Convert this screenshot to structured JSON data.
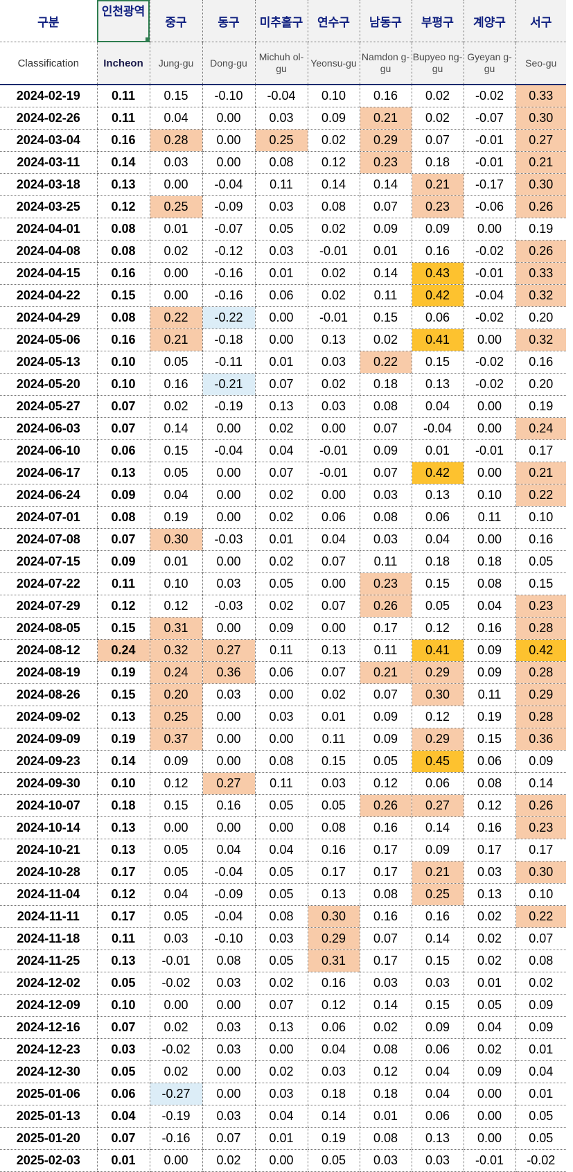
{
  "header": {
    "columns_ko": [
      "구분",
      "인천광역",
      "중구",
      "동구",
      "미추홀구",
      "연수구",
      "남동구",
      "부평구",
      "계양구",
      "서구"
    ],
    "columns_en": [
      "Classification",
      "Incheon",
      "Jung-gu",
      "Dong-gu",
      "Michuh ol-gu",
      "Yeonsu-gu",
      "Namdon g-gu",
      "Bupyeo ng-gu",
      "Gyeyan g-gu",
      "Seo-gu"
    ]
  },
  "colors": {
    "orange": "#f8cba9",
    "yellow": "#fdc22f",
    "blue": "#dcedf7",
    "header_navy": "#102080"
  },
  "rows": [
    {
      "date": "2024-02-19",
      "values": [
        "0.11",
        "0.15",
        "-0.10",
        "-0.04",
        "0.10",
        "0.16",
        "0.02",
        "-0.02",
        "0.33"
      ],
      "hl": [
        "",
        "",
        "",
        "",
        "",
        "",
        "",
        "",
        "o"
      ]
    },
    {
      "date": "2024-02-26",
      "values": [
        "0.11",
        "0.04",
        "0.00",
        "0.03",
        "0.09",
        "0.21",
        "0.02",
        "-0.07",
        "0.30"
      ],
      "hl": [
        "",
        "",
        "",
        "",
        "",
        "o",
        "",
        "",
        "o"
      ]
    },
    {
      "date": "2024-03-04",
      "values": [
        "0.16",
        "0.28",
        "0.00",
        "0.25",
        "0.02",
        "0.29",
        "0.07",
        "-0.01",
        "0.27"
      ],
      "hl": [
        "",
        "o",
        "",
        "o",
        "",
        "o",
        "",
        "",
        "o"
      ]
    },
    {
      "date": "2024-03-11",
      "values": [
        "0.14",
        "0.03",
        "0.00",
        "0.08",
        "0.12",
        "0.23",
        "0.18",
        "-0.01",
        "0.21"
      ],
      "hl": [
        "",
        "",
        "",
        "",
        "",
        "o",
        "",
        "",
        "o"
      ]
    },
    {
      "date": "2024-03-18",
      "values": [
        "0.13",
        "0.00",
        "-0.04",
        "0.11",
        "0.14",
        "0.14",
        "0.21",
        "-0.17",
        "0.30"
      ],
      "hl": [
        "",
        "",
        "",
        "",
        "",
        "",
        "o",
        "",
        "o"
      ]
    },
    {
      "date": "2024-03-25",
      "values": [
        "0.12",
        "0.25",
        "-0.09",
        "0.03",
        "0.08",
        "0.07",
        "0.23",
        "-0.06",
        "0.26"
      ],
      "hl": [
        "",
        "o",
        "",
        "",
        "",
        "",
        "o",
        "",
        "o"
      ]
    },
    {
      "date": "2024-04-01",
      "values": [
        "0.08",
        "0.01",
        "-0.07",
        "0.05",
        "0.02",
        "0.09",
        "0.09",
        "0.00",
        "0.19"
      ],
      "hl": [
        "",
        "",
        "",
        "",
        "",
        "",
        "",
        "",
        ""
      ]
    },
    {
      "date": "2024-04-08",
      "values": [
        "0.08",
        "0.02",
        "-0.12",
        "0.03",
        "-0.01",
        "0.01",
        "0.16",
        "-0.02",
        "0.26"
      ],
      "hl": [
        "",
        "",
        "",
        "",
        "",
        "",
        "",
        "",
        "o"
      ]
    },
    {
      "date": "2024-04-15",
      "values": [
        "0.16",
        "0.00",
        "-0.16",
        "0.01",
        "0.02",
        "0.14",
        "0.43",
        "-0.01",
        "0.33"
      ],
      "hl": [
        "",
        "",
        "",
        "",
        "",
        "",
        "y",
        "",
        "o"
      ]
    },
    {
      "date": "2024-04-22",
      "values": [
        "0.15",
        "0.00",
        "-0.16",
        "0.06",
        "0.02",
        "0.11",
        "0.42",
        "-0.04",
        "0.32"
      ],
      "hl": [
        "",
        "",
        "",
        "",
        "",
        "",
        "y",
        "",
        "o"
      ]
    },
    {
      "date": "2024-04-29",
      "values": [
        "0.08",
        "0.22",
        "-0.22",
        "0.00",
        "-0.01",
        "0.15",
        "0.06",
        "-0.02",
        "0.20"
      ],
      "hl": [
        "",
        "o",
        "b",
        "",
        "",
        "",
        "",
        "",
        ""
      ]
    },
    {
      "date": "2024-05-06",
      "values": [
        "0.16",
        "0.21",
        "-0.18",
        "0.00",
        "0.13",
        "0.02",
        "0.41",
        "0.00",
        "0.32"
      ],
      "hl": [
        "",
        "o",
        "",
        "",
        "",
        "",
        "y",
        "",
        "o"
      ]
    },
    {
      "date": "2024-05-13",
      "values": [
        "0.10",
        "0.05",
        "-0.11",
        "0.01",
        "0.03",
        "0.22",
        "0.15",
        "-0.02",
        "0.16"
      ],
      "hl": [
        "",
        "",
        "",
        "",
        "",
        "o",
        "",
        "",
        ""
      ]
    },
    {
      "date": "2024-05-20",
      "values": [
        "0.10",
        "0.16",
        "-0.21",
        "0.07",
        "0.02",
        "0.18",
        "0.13",
        "-0.02",
        "0.20"
      ],
      "hl": [
        "",
        "",
        "b",
        "",
        "",
        "",
        "",
        "",
        ""
      ]
    },
    {
      "date": "2024-05-27",
      "values": [
        "0.07",
        "0.02",
        "-0.19",
        "0.13",
        "0.03",
        "0.08",
        "0.04",
        "0.00",
        "0.19"
      ],
      "hl": [
        "",
        "",
        "",
        "",
        "",
        "",
        "",
        "",
        ""
      ]
    },
    {
      "date": "2024-06-03",
      "values": [
        "0.07",
        "0.14",
        "0.00",
        "0.02",
        "0.00",
        "0.07",
        "-0.04",
        "0.00",
        "0.24"
      ],
      "hl": [
        "",
        "",
        "",
        "",
        "",
        "",
        "",
        "",
        "o"
      ]
    },
    {
      "date": "2024-06-10",
      "values": [
        "0.06",
        "0.15",
        "-0.04",
        "0.04",
        "-0.01",
        "0.09",
        "0.01",
        "-0.01",
        "0.17"
      ],
      "hl": [
        "",
        "",
        "",
        "",
        "",
        "",
        "",
        "",
        ""
      ]
    },
    {
      "date": "2024-06-17",
      "values": [
        "0.13",
        "0.05",
        "0.00",
        "0.07",
        "-0.01",
        "0.07",
        "0.42",
        "0.00",
        "0.21"
      ],
      "hl": [
        "",
        "",
        "",
        "",
        "",
        "",
        "y",
        "",
        "o"
      ]
    },
    {
      "date": "2024-06-24",
      "values": [
        "0.09",
        "0.04",
        "0.00",
        "0.02",
        "0.00",
        "0.03",
        "0.13",
        "0.10",
        "0.22"
      ],
      "hl": [
        "",
        "",
        "",
        "",
        "",
        "",
        "",
        "",
        "o"
      ]
    },
    {
      "date": "2024-07-01",
      "values": [
        "0.08",
        "0.19",
        "0.00",
        "0.02",
        "0.06",
        "0.08",
        "0.06",
        "0.11",
        "0.10"
      ],
      "hl": [
        "",
        "",
        "",
        "",
        "",
        "",
        "",
        "",
        ""
      ]
    },
    {
      "date": "2024-07-08",
      "values": [
        "0.07",
        "0.30",
        "-0.03",
        "0.01",
        "0.04",
        "0.03",
        "0.04",
        "0.00",
        "0.16"
      ],
      "hl": [
        "",
        "o",
        "",
        "",
        "",
        "",
        "",
        "",
        ""
      ]
    },
    {
      "date": "2024-07-15",
      "values": [
        "0.09",
        "0.01",
        "0.00",
        "0.02",
        "0.07",
        "0.11",
        "0.18",
        "0.18",
        "0.05"
      ],
      "hl": [
        "",
        "",
        "",
        "",
        "",
        "",
        "",
        "",
        ""
      ]
    },
    {
      "date": "2024-07-22",
      "values": [
        "0.11",
        "0.10",
        "0.03",
        "0.05",
        "0.00",
        "0.23",
        "0.15",
        "0.08",
        "0.15"
      ],
      "hl": [
        "",
        "",
        "",
        "",
        "",
        "o",
        "",
        "",
        ""
      ]
    },
    {
      "date": "2024-07-29",
      "values": [
        "0.12",
        "0.12",
        "-0.03",
        "0.02",
        "0.07",
        "0.26",
        "0.05",
        "0.04",
        "0.23"
      ],
      "hl": [
        "",
        "",
        "",
        "",
        "",
        "o",
        "",
        "",
        "o"
      ]
    },
    {
      "date": "2024-08-05",
      "values": [
        "0.15",
        "0.31",
        "0.00",
        "0.09",
        "0.00",
        "0.17",
        "0.12",
        "0.16",
        "0.28"
      ],
      "hl": [
        "",
        "o",
        "",
        "",
        "",
        "",
        "",
        "",
        "o"
      ]
    },
    {
      "date": "2024-08-12",
      "values": [
        "0.24",
        "0.32",
        "0.27",
        "0.11",
        "0.13",
        "0.11",
        "0.41",
        "0.09",
        "0.42"
      ],
      "hl": [
        "o",
        "o",
        "o",
        "",
        "",
        "",
        "y",
        "",
        "y"
      ]
    },
    {
      "date": "2024-08-19",
      "values": [
        "0.19",
        "0.24",
        "0.36",
        "0.06",
        "0.07",
        "0.21",
        "0.29",
        "0.09",
        "0.28"
      ],
      "hl": [
        "",
        "o",
        "o",
        "",
        "",
        "o",
        "o",
        "",
        "o"
      ]
    },
    {
      "date": "2024-08-26",
      "values": [
        "0.15",
        "0.20",
        "0.03",
        "0.00",
        "0.02",
        "0.07",
        "0.30",
        "0.11",
        "0.29"
      ],
      "hl": [
        "",
        "o",
        "",
        "",
        "",
        "",
        "o",
        "",
        "o"
      ]
    },
    {
      "date": "2024-09-02",
      "values": [
        "0.13",
        "0.25",
        "0.00",
        "0.03",
        "0.01",
        "0.09",
        "0.12",
        "0.19",
        "0.28"
      ],
      "hl": [
        "",
        "o",
        "",
        "",
        "",
        "",
        "",
        "",
        "o"
      ]
    },
    {
      "date": "2024-09-09",
      "values": [
        "0.19",
        "0.37",
        "0.00",
        "0.00",
        "0.11",
        "0.09",
        "0.29",
        "0.15",
        "0.36"
      ],
      "hl": [
        "",
        "o",
        "",
        "",
        "",
        "",
        "o",
        "",
        "o"
      ]
    },
    {
      "date": "2024-09-23",
      "values": [
        "0.14",
        "0.09",
        "0.00",
        "0.08",
        "0.15",
        "0.05",
        "0.45",
        "0.06",
        "0.09"
      ],
      "hl": [
        "",
        "",
        "",
        "",
        "",
        "",
        "y",
        "",
        ""
      ]
    },
    {
      "date": "2024-09-30",
      "values": [
        "0.10",
        "0.12",
        "0.27",
        "0.11",
        "0.03",
        "0.12",
        "0.06",
        "0.08",
        "0.14"
      ],
      "hl": [
        "",
        "",
        "o",
        "",
        "",
        "",
        "",
        "",
        ""
      ]
    },
    {
      "date": "2024-10-07",
      "values": [
        "0.18",
        "0.15",
        "0.16",
        "0.05",
        "0.05",
        "0.26",
        "0.27",
        "0.12",
        "0.26"
      ],
      "hl": [
        "",
        "",
        "",
        "",
        "",
        "o",
        "o",
        "",
        "o"
      ]
    },
    {
      "date": "2024-10-14",
      "values": [
        "0.13",
        "0.00",
        "0.00",
        "0.00",
        "0.08",
        "0.16",
        "0.14",
        "0.16",
        "0.23"
      ],
      "hl": [
        "",
        "",
        "",
        "",
        "",
        "",
        "",
        "",
        "o"
      ]
    },
    {
      "date": "2024-10-21",
      "values": [
        "0.13",
        "0.05",
        "0.04",
        "0.04",
        "0.16",
        "0.17",
        "0.09",
        "0.17",
        "0.17"
      ],
      "hl": [
        "",
        "",
        "",
        "",
        "",
        "",
        "",
        "",
        ""
      ]
    },
    {
      "date": "2024-10-28",
      "values": [
        "0.17",
        "0.05",
        "-0.04",
        "0.05",
        "0.17",
        "0.17",
        "0.21",
        "0.03",
        "0.30"
      ],
      "hl": [
        "",
        "",
        "",
        "",
        "",
        "",
        "o",
        "",
        "o"
      ]
    },
    {
      "date": "2024-11-04",
      "values": [
        "0.12",
        "0.04",
        "-0.09",
        "0.05",
        "0.13",
        "0.08",
        "0.25",
        "0.13",
        "0.10"
      ],
      "hl": [
        "",
        "",
        "",
        "",
        "",
        "",
        "o",
        "",
        ""
      ]
    },
    {
      "date": "2024-11-11",
      "values": [
        "0.17",
        "0.05",
        "-0.04",
        "0.08",
        "0.30",
        "0.16",
        "0.16",
        "0.02",
        "0.22"
      ],
      "hl": [
        "",
        "",
        "",
        "",
        "o",
        "",
        "",
        "",
        "o"
      ]
    },
    {
      "date": "2024-11-18",
      "values": [
        "0.11",
        "0.03",
        "-0.10",
        "0.03",
        "0.29",
        "0.07",
        "0.14",
        "0.02",
        "0.07"
      ],
      "hl": [
        "",
        "",
        "",
        "",
        "o",
        "",
        "",
        "",
        ""
      ]
    },
    {
      "date": "2024-11-25",
      "values": [
        "0.13",
        "-0.01",
        "0.08",
        "0.05",
        "0.31",
        "0.17",
        "0.15",
        "0.02",
        "0.08"
      ],
      "hl": [
        "",
        "",
        "",
        "",
        "o",
        "",
        "",
        "",
        ""
      ]
    },
    {
      "date": "2024-12-02",
      "values": [
        "0.05",
        "-0.02",
        "0.03",
        "0.02",
        "0.16",
        "0.03",
        "0.03",
        "0.01",
        "0.02"
      ],
      "hl": [
        "",
        "",
        "",
        "",
        "",
        "",
        "",
        "",
        ""
      ]
    },
    {
      "date": "2024-12-09",
      "values": [
        "0.10",
        "0.00",
        "0.00",
        "0.07",
        "0.12",
        "0.14",
        "0.15",
        "0.05",
        "0.09"
      ],
      "hl": [
        "",
        "",
        "",
        "",
        "",
        "",
        "",
        "",
        ""
      ]
    },
    {
      "date": "2024-12-16",
      "values": [
        "0.07",
        "0.02",
        "0.03",
        "0.13",
        "0.06",
        "0.02",
        "0.09",
        "0.04",
        "0.09"
      ],
      "hl": [
        "",
        "",
        "",
        "",
        "",
        "",
        "",
        "",
        ""
      ]
    },
    {
      "date": "2024-12-23",
      "values": [
        "0.03",
        "-0.02",
        "0.03",
        "0.00",
        "0.04",
        "0.08",
        "0.06",
        "0.02",
        "0.01"
      ],
      "hl": [
        "",
        "",
        "",
        "",
        "",
        "",
        "",
        "",
        ""
      ]
    },
    {
      "date": "2024-12-30",
      "values": [
        "0.05",
        "0.02",
        "0.00",
        "0.02",
        "0.03",
        "0.12",
        "0.04",
        "0.09",
        "0.04"
      ],
      "hl": [
        "",
        "",
        "",
        "",
        "",
        "",
        "",
        "",
        ""
      ]
    },
    {
      "date": "2025-01-06",
      "values": [
        "0.06",
        "-0.27",
        "0.00",
        "0.03",
        "0.18",
        "0.18",
        "0.04",
        "0.00",
        "0.01"
      ],
      "hl": [
        "",
        "b",
        "",
        "",
        "",
        "",
        "",
        "",
        ""
      ]
    },
    {
      "date": "2025-01-13",
      "values": [
        "0.04",
        "-0.19",
        "0.03",
        "0.04",
        "0.14",
        "0.01",
        "0.06",
        "0.00",
        "0.05"
      ],
      "hl": [
        "",
        "",
        "",
        "",
        "",
        "",
        "",
        "",
        ""
      ]
    },
    {
      "date": "2025-01-20",
      "values": [
        "0.07",
        "-0.16",
        "0.07",
        "0.01",
        "0.19",
        "0.08",
        "0.13",
        "0.00",
        "0.05"
      ],
      "hl": [
        "",
        "",
        "",
        "",
        "",
        "",
        "",
        "",
        ""
      ]
    },
    {
      "date": "2025-02-03",
      "values": [
        "0.01",
        "0.00",
        "0.02",
        "0.00",
        "0.05",
        "0.03",
        "0.03",
        "-0.01",
        "-0.02"
      ],
      "hl": [
        "",
        "",
        "",
        "",
        "",
        "",
        "",
        "",
        ""
      ]
    }
  ]
}
